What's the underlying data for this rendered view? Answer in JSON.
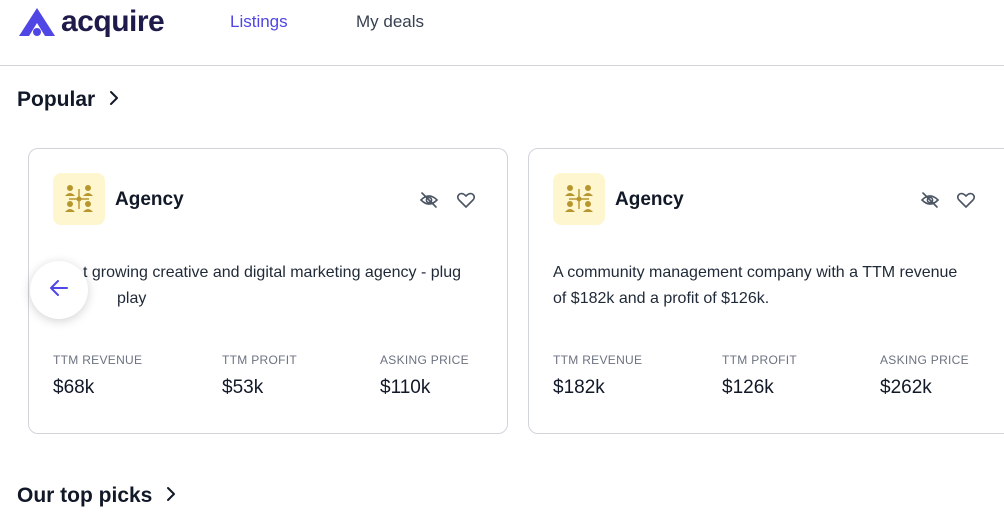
{
  "header": {
    "brand": "acquire",
    "nav": [
      {
        "label": "Listings",
        "active": true
      },
      {
        "label": "My deals",
        "active": false
      }
    ],
    "accent_color": "#4f46e5"
  },
  "sections": {
    "popular": {
      "title": "Popular"
    },
    "top_picks": {
      "title": "Our top picks"
    }
  },
  "listings": [
    {
      "category": "Agency",
      "description_line1": "t growing creative and digital marketing agency - plug",
      "description_line2": "play",
      "metrics": [
        {
          "label": "TTM REVENUE",
          "value": "$68k"
        },
        {
          "label": "TTM PROFIT",
          "value": "$53k"
        },
        {
          "label": "ASKING PRICE",
          "value": "$110k"
        }
      ]
    },
    {
      "category": "Agency",
      "description_line1": "A community management company with a TTM revenue",
      "description_line2": "of $182k and a profit of $126k.",
      "metrics": [
        {
          "label": "TTM REVENUE",
          "value": "$182k"
        },
        {
          "label": "TTM PROFIT",
          "value": "$126k"
        },
        {
          "label": "ASKING PRICE",
          "value": "$262k"
        }
      ]
    }
  ],
  "icons": {
    "category": "team-network-icon",
    "hide": "eye-off-icon",
    "favorite": "heart-icon",
    "prev": "arrow-left-icon",
    "more": "chevron-right-icon"
  }
}
